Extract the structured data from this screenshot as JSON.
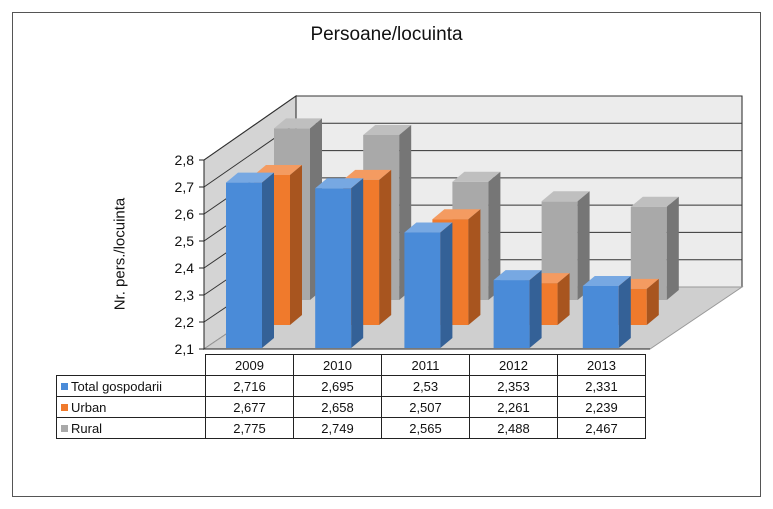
{
  "chart_data": {
    "type": "bar",
    "title": "Persoane/locuinta",
    "ylabel": "Nr. pers./locuinta",
    "xlabel": "",
    "categories": [
      "2009",
      "2010",
      "2011",
      "2012",
      "2013"
    ],
    "ylim": [
      2.1,
      2.8
    ],
    "yticks": [
      "2,1",
      "2,2",
      "2,3",
      "2,4",
      "2,5",
      "2,6",
      "2,7",
      "2,8"
    ],
    "grid": true,
    "legend": "data-table",
    "series": [
      {
        "name": "Total gospodarii",
        "color": "#4a8bd8",
        "values": [
          2.716,
          2.695,
          2.53,
          2.353,
          2.331
        ],
        "labels": [
          "2,716",
          "2,695",
          "2,53",
          "2,353",
          "2,331"
        ]
      },
      {
        "name": "Urban",
        "color": "#f07a2c",
        "values": [
          2.677,
          2.658,
          2.507,
          2.261,
          2.239
        ],
        "labels": [
          "2,677",
          "2,658",
          "2,507",
          "2,261",
          "2,239"
        ]
      },
      {
        "name": "Rural",
        "color": "#a9a9a9",
        "values": [
          2.775,
          2.749,
          2.565,
          2.488,
          2.467
        ],
        "labels": [
          "2,775",
          "2,749",
          "2,565",
          "2,488",
          "2,467"
        ]
      }
    ]
  }
}
